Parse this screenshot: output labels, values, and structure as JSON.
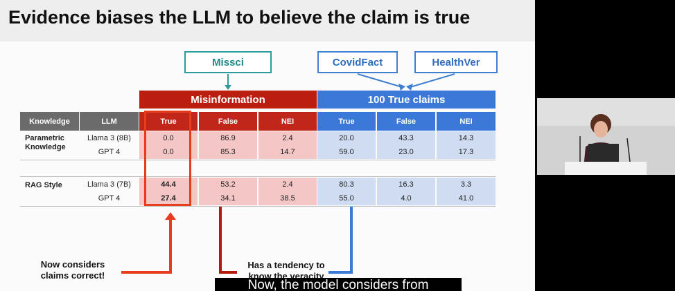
{
  "slide": {
    "title": "Evidence biases the LLM to believe the claim is true",
    "datasets": {
      "missci": "Missci",
      "covidfact": "CovidFact",
      "healthver": "HealthVer"
    },
    "groups": {
      "misinformation": "Misinformation",
      "true_claims": "100 True claims"
    },
    "table": {
      "headers": [
        "Knowledge",
        "LLM",
        "True",
        "False",
        "NEI",
        "True",
        "False",
        "NEI"
      ],
      "blocks": [
        {
          "knowledge": "Parametric Knowledge",
          "rows": [
            {
              "llm": "Llama 3 (8B)",
              "values": [
                "0.0",
                "86.9",
                "2.4",
                "20.0",
                "43.3",
                "14.3"
              ]
            },
            {
              "llm": "GPT 4",
              "values": [
                "0.0",
                "85.3",
                "14.7",
                "59.0",
                "23.0",
                "17.3"
              ]
            }
          ]
        },
        {
          "knowledge": "RAG Style",
          "rows": [
            {
              "llm": "Llama 3 (7B)",
              "values": [
                "44.4",
                "53.2",
                "2.4",
                "80.3",
                "16.3",
                "3.3"
              ]
            },
            {
              "llm": "GPT 4",
              "values": [
                "27.4",
                "34.1",
                "38.5",
                "55.0",
                "4.0",
                "41.0"
              ]
            }
          ]
        }
      ]
    },
    "annotations": {
      "left": "Now considers claims correct!",
      "middle": "Has a tendency to know the veracity"
    },
    "colors": {
      "accent_red": "#c0261a",
      "accent_blue": "#3b78d8",
      "highlight": "#e83c1e"
    }
  },
  "video": {
    "caption": "Now, the model considers from",
    "speaker": "presenter-video"
  }
}
